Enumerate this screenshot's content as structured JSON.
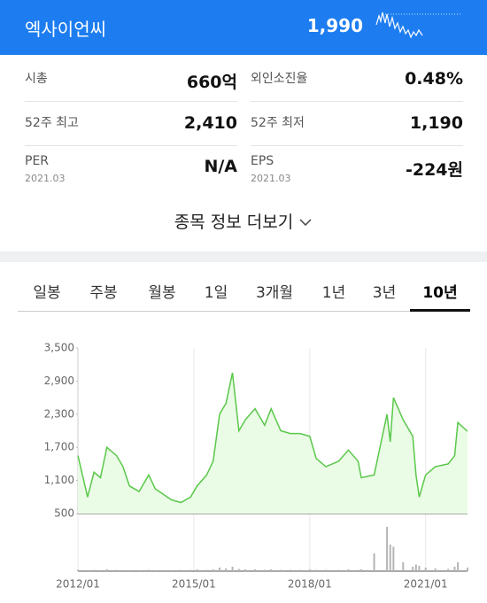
{
  "header": {
    "name": "엑사이언씨",
    "price": "1,990"
  },
  "stats": {
    "rows": [
      [
        {
          "label": "시총",
          "value": "660억"
        },
        {
          "label": "외인소진율",
          "value": "0.48%"
        }
      ],
      [
        {
          "label": "52주 최고",
          "value": "2,410"
        },
        {
          "label": "52주 최저",
          "value": "1,190"
        }
      ],
      [
        {
          "label": "PER",
          "date": "2021.03",
          "value": "N/A"
        },
        {
          "label": "EPS",
          "date": "2021.03",
          "value": "-224원"
        }
      ]
    ]
  },
  "more": "종목 정보 더보기",
  "tabs": {
    "items": [
      "일봉",
      "주봉",
      "월봉",
      "1일",
      "3개월",
      "1년",
      "3년",
      "10년"
    ],
    "active": 7
  },
  "chart_data": {
    "type": "line",
    "color": "#5ac84a",
    "area_color": "#eafbe6",
    "x": [
      "2012/01",
      "2012/04",
      "2012/06",
      "2012/08",
      "2012/10",
      "2013/01",
      "2013/03",
      "2013/05",
      "2013/08",
      "2013/11",
      "2014/01",
      "2014/06",
      "2014/09",
      "2014/12",
      "2015/02",
      "2015/05",
      "2015/07",
      "2015/09",
      "2015/11",
      "2016/01",
      "2016/03",
      "2016/05",
      "2016/08",
      "2016/11",
      "2017/01",
      "2017/04",
      "2017/07",
      "2017/10",
      "2018/01",
      "2018/03",
      "2018/06",
      "2018/10",
      "2019/01",
      "2019/04",
      "2019/05",
      "2019/09",
      "2020/01",
      "2020/02",
      "2020/03",
      "2020/06",
      "2020/09",
      "2020/10",
      "2020/11",
      "2021/01",
      "2021/04",
      "2021/08",
      "2021/10",
      "2021/11",
      "2022/02"
    ],
    "values": [
      1550,
      800,
      1250,
      1150,
      1700,
      1550,
      1350,
      1000,
      900,
      1200,
      950,
      750,
      700,
      800,
      1000,
      1200,
      1450,
      2300,
      2500,
      3050,
      2000,
      2200,
      2400,
      2100,
      2400,
      2000,
      1950,
      1950,
      1900,
      1500,
      1350,
      1450,
      1650,
      1450,
      1150,
      1200,
      2300,
      1800,
      2600,
      2200,
      1900,
      1200,
      800,
      1200,
      1350,
      1400,
      1550,
      2150,
      1990
    ],
    "volume": [
      3,
      2,
      3,
      2,
      4,
      3,
      2,
      2,
      2,
      3,
      2,
      2,
      3,
      3,
      4,
      3,
      4,
      8,
      6,
      10,
      5,
      4,
      4,
      3,
      4,
      3,
      3,
      3,
      4,
      3,
      3,
      3,
      4,
      3,
      4,
      40,
      100,
      60,
      55,
      20,
      10,
      15,
      12,
      8,
      6,
      5,
      10,
      20,
      8
    ],
    "xlim": [
      "2012/01",
      "2022/02"
    ],
    "xticks": [
      "2012/01",
      "2015/01",
      "2018/01",
      "2021/01"
    ],
    "ylim": [
      500,
      3500
    ],
    "yticks": [
      {
        "value": 3500,
        "label": "3,500"
      },
      {
        "value": 2900,
        "label": "2,900"
      },
      {
        "value": 2300,
        "label": "2,300"
      },
      {
        "value": 1700,
        "label": "1,700"
      },
      {
        "value": 1100,
        "label": "1,100"
      },
      500
    ],
    "grid": true
  }
}
